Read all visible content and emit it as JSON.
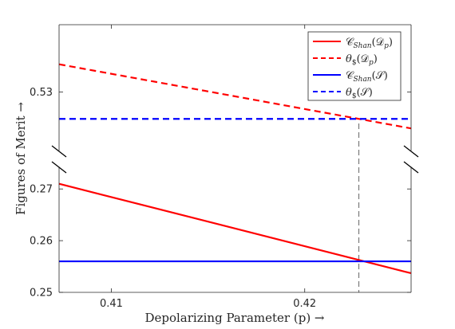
{
  "chart_data": {
    "type": "line",
    "xlabel": "Depolarizing Parameter (p) →",
    "ylabel": "Figures of Merit →",
    "xlim": [
      0.4073,
      0.4255
    ],
    "x_ticks": [
      "0.41",
      "0.42"
    ],
    "x_tick_values": [
      0.41,
      0.42
    ],
    "y_axis_broken": true,
    "y_upper_segment": {
      "ylim": [
        0.5225,
        0.5385
      ],
      "ticks": [
        "0.53"
      ],
      "tick_values": [
        0.53
      ]
    },
    "y_lower_segment": {
      "ylim": [
        0.25,
        0.2745
      ],
      "ticks": [
        "0.25",
        "0.26",
        "0.27"
      ],
      "tick_values": [
        0.25,
        0.26,
        0.27
      ]
    },
    "vertical_reference_x": 0.4228,
    "grid": false,
    "legend_position": "top-right",
    "series": [
      {
        "name": "C_Shan(D_p)",
        "segment": "lower",
        "style": "solid",
        "color": "#ff0000",
        "x": [
          0.4073,
          0.4255
        ],
        "y": [
          0.271,
          0.2537
        ]
      },
      {
        "name": "θ_$(D_p)",
        "segment": "upper",
        "style": "dashed",
        "color": "#ff0000",
        "x": [
          0.4073,
          0.4255
        ],
        "y": [
          0.5335,
          0.5254
        ]
      },
      {
        "name": "C_Shan(S)",
        "segment": "lower",
        "style": "solid",
        "color": "#0000ff",
        "x": [
          0.4073,
          0.4255
        ],
        "y": [
          0.256,
          0.256
        ]
      },
      {
        "name": "θ_$(S)",
        "segment": "upper",
        "style": "dashed",
        "color": "#0000ff",
        "x": [
          0.4073,
          0.4255
        ],
        "y": [
          0.5266,
          0.5266
        ]
      }
    ]
  }
}
